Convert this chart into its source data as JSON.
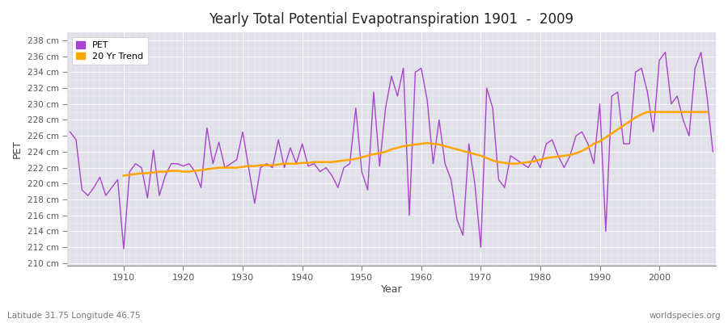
{
  "title": "Yearly Total Potential Evapotranspiration 1901  -  2009",
  "xlabel": "Year",
  "ylabel": "PET",
  "bottom_left_label": "Latitude 31.75 Longitude 46.75",
  "bottom_right_label": "worldspecies.org",
  "pet_color": "#AA44CC",
  "trend_color": "#FFA500",
  "fig_bg_color": "#FFFFFF",
  "plot_bg_color": "#E0E0E8",
  "grid_color": "#FFFFFF",
  "ylim": [
    210,
    238
  ],
  "ytick_step": 2,
  "years": [
    1901,
    1902,
    1903,
    1904,
    1905,
    1906,
    1907,
    1908,
    1909,
    1910,
    1911,
    1912,
    1913,
    1914,
    1915,
    1916,
    1917,
    1918,
    1919,
    1920,
    1921,
    1922,
    1923,
    1924,
    1925,
    1926,
    1927,
    1928,
    1929,
    1930,
    1931,
    1932,
    1933,
    1934,
    1935,
    1936,
    1937,
    1938,
    1939,
    1940,
    1941,
    1942,
    1943,
    1944,
    1945,
    1946,
    1947,
    1948,
    1949,
    1950,
    1951,
    1952,
    1953,
    1954,
    1955,
    1956,
    1957,
    1958,
    1959,
    1960,
    1961,
    1962,
    1963,
    1964,
    1965,
    1966,
    1967,
    1968,
    1969,
    1970,
    1971,
    1972,
    1973,
    1974,
    1975,
    1976,
    1977,
    1978,
    1979,
    1980,
    1981,
    1982,
    1983,
    1984,
    1985,
    1986,
    1987,
    1988,
    1989,
    1990,
    1991,
    1992,
    1993,
    1994,
    1995,
    1996,
    1997,
    1998,
    1999,
    2000,
    2001,
    2002,
    2003,
    2004,
    2005,
    2006,
    2007,
    2008,
    2009
  ],
  "pet_values": [
    226.5,
    225.5,
    219.2,
    218.5,
    219.5,
    220.8,
    218.5,
    219.5,
    220.5,
    211.8,
    221.5,
    222.5,
    222.0,
    218.2,
    224.2,
    218.5,
    221.0,
    222.5,
    222.5,
    222.2,
    222.5,
    221.5,
    219.5,
    227.0,
    222.5,
    225.2,
    222.0,
    222.5,
    223.0,
    226.5,
    222.0,
    217.5,
    222.0,
    222.5,
    222.0,
    225.5,
    222.0,
    224.5,
    222.5,
    225.0,
    222.2,
    222.5,
    221.5,
    222.0,
    221.0,
    219.5,
    222.0,
    222.5,
    229.5,
    221.5,
    219.2,
    231.5,
    222.2,
    229.5,
    233.5,
    231.0,
    234.5,
    216.0,
    234.0,
    234.5,
    230.5,
    222.5,
    228.0,
    222.5,
    220.5,
    215.5,
    213.5,
    225.0,
    220.0,
    212.0,
    232.0,
    229.5,
    220.5,
    219.5,
    223.5,
    223.0,
    222.5,
    222.0,
    223.5,
    222.0,
    225.0,
    225.5,
    223.5,
    222.0,
    223.5,
    226.0,
    226.5,
    225.0,
    222.5,
    230.0,
    214.0,
    231.0,
    231.5,
    225.0,
    225.0,
    234.0,
    234.5,
    231.5,
    226.5,
    235.5,
    236.5,
    230.0,
    231.0,
    228.0,
    226.0,
    234.5,
    236.5,
    231.0,
    224.0
  ],
  "trend_values": [
    null,
    null,
    null,
    null,
    null,
    null,
    null,
    null,
    null,
    221.0,
    221.1,
    221.2,
    221.3,
    221.3,
    221.4,
    221.5,
    221.5,
    221.6,
    221.6,
    221.5,
    221.5,
    221.6,
    221.7,
    221.8,
    221.9,
    222.0,
    222.0,
    222.0,
    222.0,
    222.1,
    222.2,
    222.2,
    222.3,
    222.3,
    222.3,
    222.4,
    222.5,
    222.5,
    222.5,
    222.6,
    222.6,
    222.7,
    222.7,
    222.7,
    222.7,
    222.8,
    222.9,
    223.0,
    223.1,
    223.3,
    223.5,
    223.7,
    223.8,
    224.0,
    224.3,
    224.5,
    224.7,
    224.8,
    224.9,
    225.0,
    225.1,
    225.0,
    224.9,
    224.7,
    224.5,
    224.3,
    224.1,
    223.9,
    223.7,
    223.5,
    223.2,
    222.9,
    222.7,
    222.6,
    222.5,
    222.5,
    222.6,
    222.7,
    222.8,
    223.0,
    223.2,
    223.3,
    223.4,
    223.5,
    223.6,
    223.8,
    224.1,
    224.5,
    225.0,
    225.3,
    225.8,
    226.3,
    226.8,
    227.3,
    227.8,
    228.3,
    228.7,
    229.0,
    229.0,
    229.0,
    229.0,
    229.0,
    229.0,
    229.0,
    229.0,
    229.0,
    229.0,
    229.0
  ]
}
